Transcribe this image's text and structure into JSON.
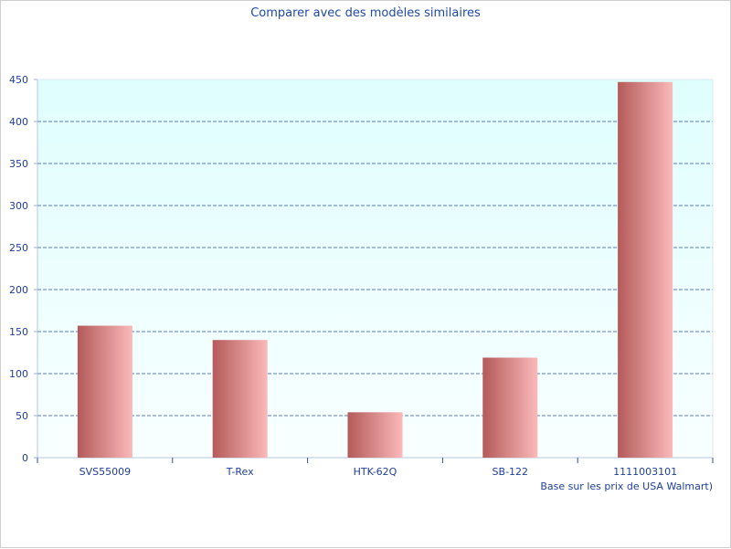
{
  "chart_data": {
    "type": "bar",
    "title": "Comparer avec des modèles similaires",
    "categories": [
      "SVS55009",
      "T-Rex",
      "HTK-62Q",
      "SB-122",
      "1111003101"
    ],
    "values": [
      157,
      140,
      54,
      119,
      447
    ],
    "ylim": [
      0,
      450
    ],
    "yticks": [
      0,
      50,
      100,
      150,
      200,
      250,
      300,
      350,
      400,
      450
    ],
    "grid": true,
    "footnote": "Base sur les prix de USA Walmart)",
    "colors": {
      "text": "#1f3f9a",
      "grid": "#2d4f9e",
      "plot_top": "#dffefe",
      "plot_bottom": "#f9ffff",
      "bar_left": "#b45a5a",
      "bar_right": "#fbb9b9"
    }
  }
}
